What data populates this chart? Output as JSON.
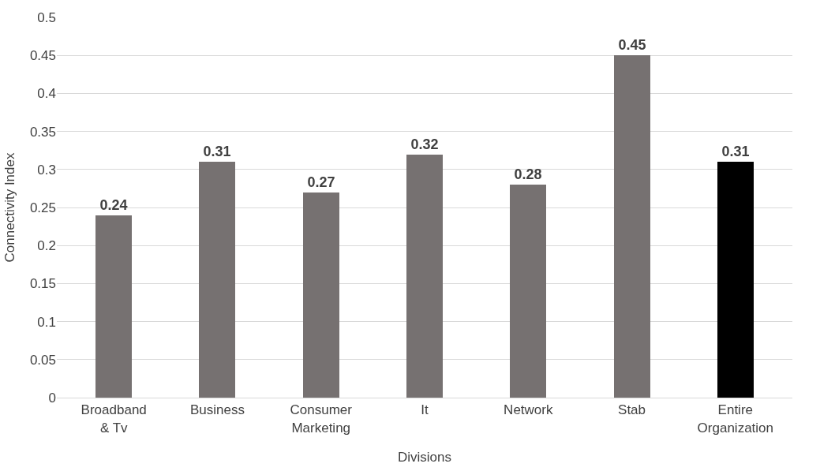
{
  "chart_data": {
    "type": "bar",
    "xlabel": "Divisions",
    "ylabel": "Connectivity Index",
    "categories": [
      "Broadband & Tv",
      "Business",
      "Consumer Marketing",
      "It",
      "Network",
      "Stab",
      "Entire Organization"
    ],
    "values": [
      0.24,
      0.31,
      0.27,
      0.32,
      0.28,
      0.45,
      0.31
    ],
    "colors": [
      "#767171",
      "#767171",
      "#767171",
      "#767171",
      "#767171",
      "#767171",
      "#000000"
    ],
    "ylim": [
      0,
      0.5
    ],
    "yticks": [
      0,
      0.05,
      0.1,
      0.15,
      0.2,
      0.25,
      0.3,
      0.35,
      0.4,
      0.45,
      0.5
    ],
    "grid": "y",
    "data_labels": true,
    "legend": false
  }
}
